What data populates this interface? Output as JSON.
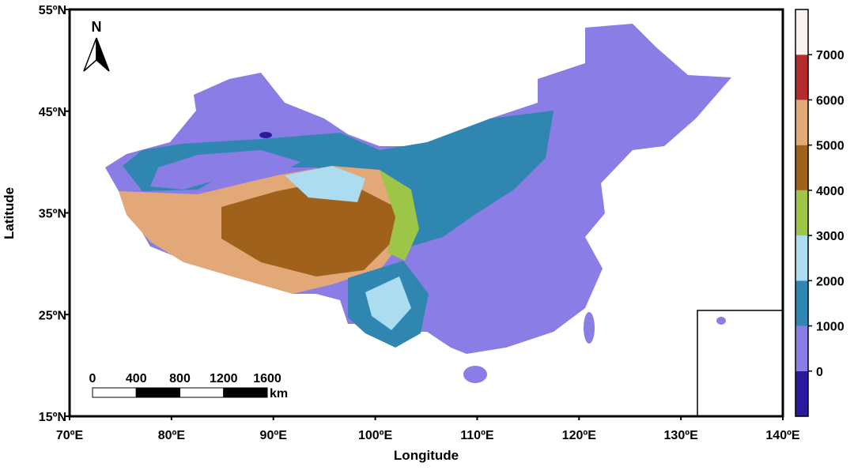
{
  "map": {
    "axes": {
      "xlabel": "Longitude",
      "ylabel": "Latitude",
      "xlim": [
        70,
        140
      ],
      "ylim": [
        15,
        55
      ],
      "xticks": [
        {
          "value": 70,
          "label": "70ºE"
        },
        {
          "value": 80,
          "label": "80ºE"
        },
        {
          "value": 90,
          "label": "90ºE"
        },
        {
          "value": 100,
          "label": "100ºE"
        },
        {
          "value": 110,
          "label": "110ºE"
        },
        {
          "value": 120,
          "label": "120ºE"
        },
        {
          "value": 130,
          "label": "130ºE"
        },
        {
          "value": 140,
          "label": "140ºE"
        }
      ],
      "yticks": [
        {
          "value": 15,
          "label": "15ºN"
        },
        {
          "value": 25,
          "label": "25ºN"
        },
        {
          "value": 35,
          "label": "35ºN"
        },
        {
          "value": 45,
          "label": "45ºN"
        },
        {
          "value": 55,
          "label": "55ºN"
        }
      ]
    },
    "colorbar": {
      "lim": [
        -1000,
        8000
      ],
      "ticks": [
        0,
        1000,
        2000,
        3000,
        4000,
        5000,
        6000,
        7000
      ],
      "colors": [
        "#2b1a9e",
        "#8a7de6",
        "#2f86b0",
        "#acdcf0",
        "#9dc547",
        "#a0621a",
        "#e2a878",
        "#b52a2a",
        "#fbf1ee"
      ]
    },
    "scale_bar": {
      "ticks": [
        0,
        400,
        800,
        1200,
        1600
      ],
      "unit": "km"
    },
    "north_arrow": "N"
  }
}
